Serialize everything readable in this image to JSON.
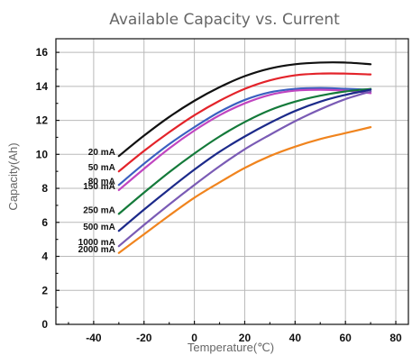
{
  "chart_data": {
    "type": "line",
    "title": "Available Capacity vs. Current",
    "xlabel": "Temperature(℃)",
    "ylabel": "Capacity(Ah)",
    "xlim": [
      -55,
      85
    ],
    "ylim": [
      0,
      16.8
    ],
    "x_ticks": [
      -40,
      -20,
      0,
      20,
      40,
      60,
      80
    ],
    "y_ticks": [
      0,
      2,
      4,
      6,
      8,
      10,
      12,
      14,
      16
    ],
    "grid": true,
    "legend": "inline labels at left end of each series",
    "x": [
      -30,
      -20,
      -10,
      0,
      10,
      20,
      30,
      40,
      50,
      60,
      70
    ],
    "series": [
      {
        "name": "20 mA",
        "color": "#111111",
        "values": [
          9.9,
          11.1,
          12.2,
          13.15,
          13.95,
          14.6,
          15.05,
          15.3,
          15.4,
          15.4,
          15.3
        ]
      },
      {
        "name": "50 mA",
        "color": "#e3232a",
        "values": [
          9.0,
          10.2,
          11.3,
          12.3,
          13.15,
          13.85,
          14.35,
          14.65,
          14.75,
          14.75,
          14.7
        ]
      },
      {
        "name": "80 mA",
        "color": "#3b5fc0",
        "values": [
          8.2,
          9.45,
          10.6,
          11.6,
          12.5,
          13.2,
          13.65,
          13.85,
          13.9,
          13.85,
          13.8
        ]
      },
      {
        "name": "150 mA",
        "color": "#c045c0",
        "values": [
          7.9,
          9.15,
          10.35,
          11.4,
          12.3,
          13.0,
          13.5,
          13.75,
          13.8,
          13.75,
          13.6
        ]
      },
      {
        "name": "250 mA",
        "color": "#147a3a",
        "values": [
          6.5,
          7.75,
          8.95,
          10.05,
          11.05,
          11.9,
          12.6,
          13.1,
          13.45,
          13.7,
          13.85
        ]
      },
      {
        "name": "500 mA",
        "color": "#1c2a8a",
        "values": [
          5.5,
          6.75,
          7.95,
          9.1,
          10.15,
          11.05,
          11.85,
          12.55,
          13.1,
          13.5,
          13.8
        ]
      },
      {
        "name": "1000 mA",
        "color": "#7a5bb5",
        "values": [
          4.6,
          5.85,
          7.05,
          8.2,
          9.3,
          10.3,
          11.15,
          11.95,
          12.65,
          13.25,
          13.7
        ]
      },
      {
        "name": "2000 mA",
        "color": "#f0841e",
        "values": [
          4.2,
          5.3,
          6.4,
          7.45,
          8.35,
          9.2,
          9.9,
          10.45,
          10.9,
          11.25,
          11.6
        ]
      }
    ]
  }
}
